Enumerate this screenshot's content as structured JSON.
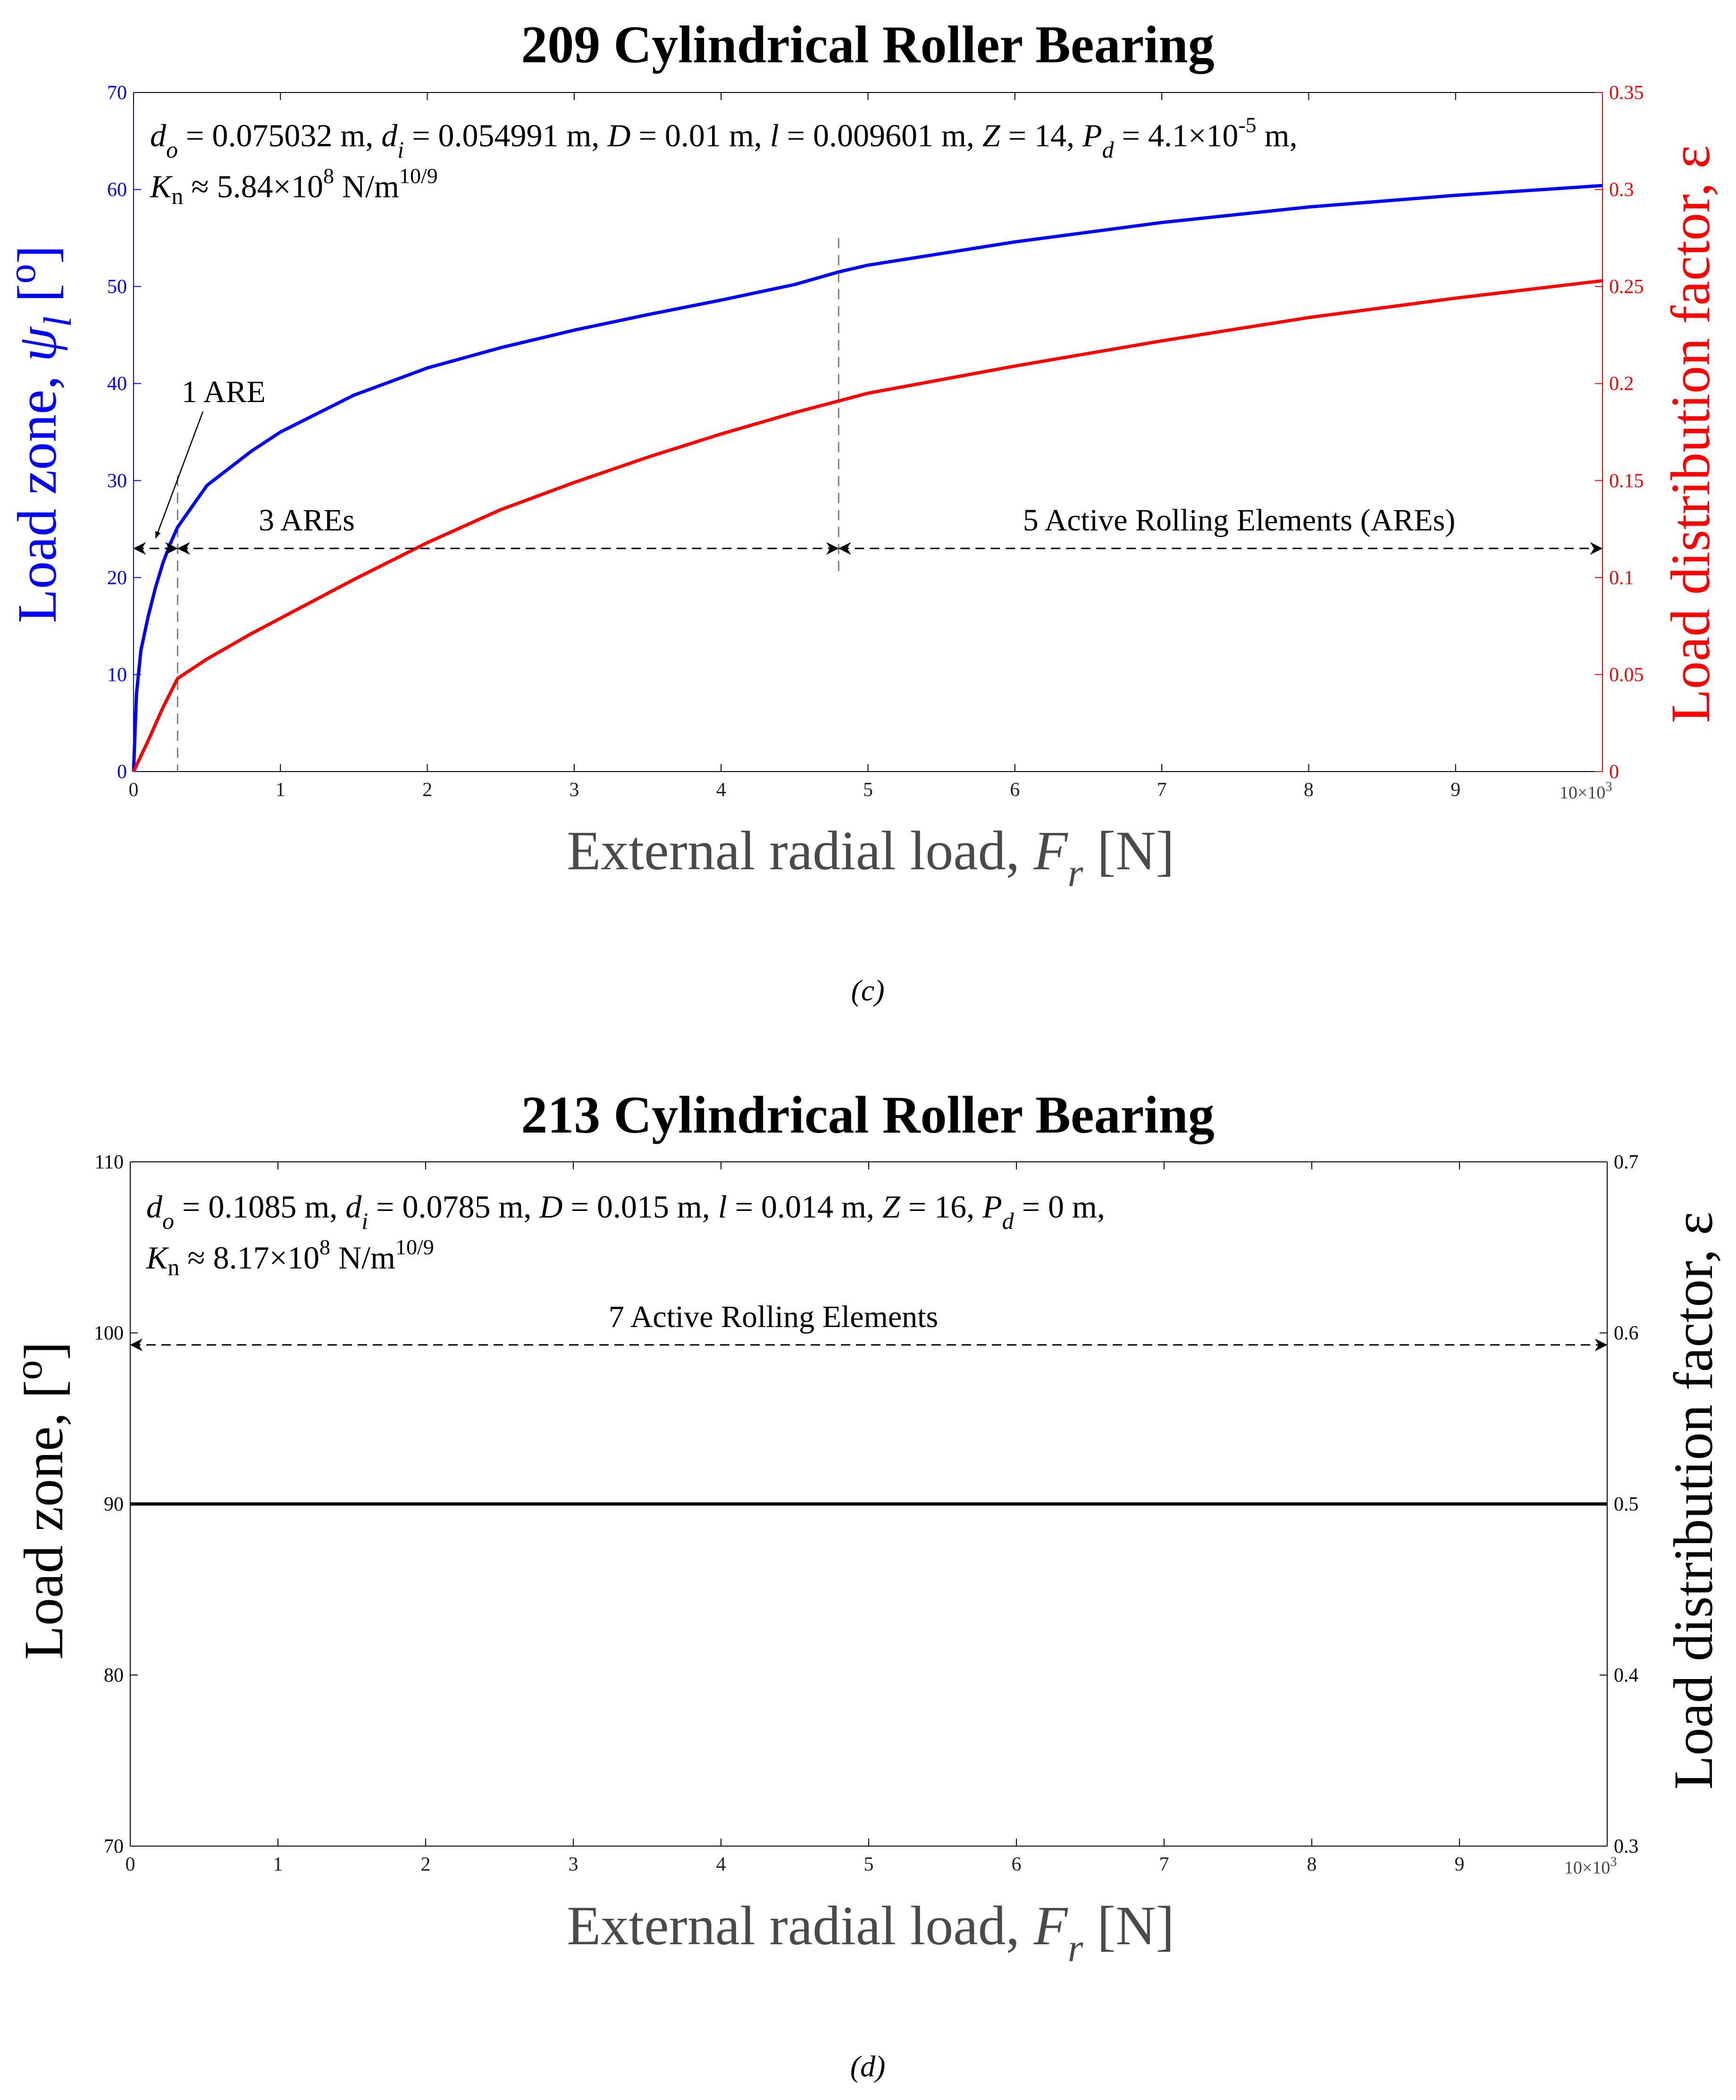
{
  "colors": {
    "blue": "#0000ff",
    "red": "#ff0000",
    "black": "#000000",
    "grey": "#4a4a4a",
    "dashed": "#808080"
  },
  "panels": [
    {
      "title": "209 Cylindrical Roller Bearing",
      "caption": "(c)",
      "xlabel": {
        "main": "External radial load, ",
        "var": "F",
        "sub": "r",
        "unit": " [N]"
      },
      "ylabel_left": {
        "main": "Load zone, ",
        "var": "ψ",
        "sub": "l",
        "unit": " [",
        "sup": "o",
        "close": "]"
      },
      "ylabel_right": "Load distribution factor, ε",
      "x_multiplier": "10×10",
      "x_multiplier_exp": "3",
      "params_line1": [
        "d",
        "o",
        " = 0.075032 m, ",
        "d",
        "i",
        " = 0.054991 m, ",
        "D",
        " = 0.01 m, ",
        "l",
        " = 0.009601 m, ",
        "Z",
        " = 14, ",
        "P",
        "d",
        " = 4.1×10",
        "-5",
        " m,"
      ],
      "params_line2": [
        "K",
        "n",
        " ≈ 5.84×10",
        "8",
        " N/m",
        "10/9"
      ],
      "annotations": {
        "one_are": "1 ARE",
        "three_ares": "3 AREs",
        "five_ares": "5 Active Rolling Elements (AREs)"
      },
      "x_ticks": [
        "0",
        "1",
        "2",
        "3",
        "4",
        "5",
        "6",
        "7",
        "8",
        "9"
      ],
      "y_left_ticks": [
        "0",
        "10",
        "20",
        "30",
        "40",
        "50",
        "60",
        "70"
      ],
      "y_right_ticks": [
        "0",
        "0.05",
        "0.1",
        "0.15",
        "0.2",
        "0.25",
        "0.3",
        "0.35"
      ]
    },
    {
      "title": "213 Cylindrical Roller Bearing",
      "caption": "(d)",
      "xlabel": {
        "main": "External radial load, ",
        "var": "F",
        "sub": "r",
        "unit": " [N]"
      },
      "ylabel_left": {
        "main": "Load zone, [",
        "sup": "o",
        "close": "]"
      },
      "ylabel_right": "Load distribution factor, ε",
      "x_multiplier": "10×10",
      "x_multiplier_exp": "3",
      "params_line1": [
        "d",
        "o",
        " = 0.1085 m, ",
        "d",
        "i",
        " = 0.0785 m, ",
        "D",
        " = 0.015 m, ",
        "l",
        " = 0.014 m, ",
        "Z",
        " = 16, ",
        "P",
        "d",
        " = 0 m,"
      ],
      "params_line2": [
        "K",
        "n",
        " ≈ 8.17×10",
        "8",
        " N/m",
        "10/9"
      ],
      "annotations": {
        "seven_ares": "7 Active Rolling Elements"
      },
      "x_ticks": [
        "0",
        "1",
        "2",
        "3",
        "4",
        "5",
        "6",
        "7",
        "8",
        "9"
      ],
      "y_left_ticks": [
        "70",
        "80",
        "90",
        "100",
        "110"
      ],
      "y_right_ticks": [
        "0.3",
        "0.4",
        "0.5",
        "0.6",
        "0.7"
      ]
    }
  ],
  "chart_data": [
    {
      "type": "line",
      "title": "209 Cylindrical Roller Bearing",
      "xlabel": "External radial load, Fr [N]",
      "ylabel": "Load zone, ψl [o]",
      "ylabel_right": "Load distribution factor, ε",
      "x_unit_multiplier": 1000,
      "xlim": [
        0,
        10000
      ],
      "ylim": [
        0,
        70
      ],
      "ylim_right": [
        0,
        0.35
      ],
      "grid": false,
      "series": [
        {
          "name": "Load zone ψl",
          "axis": "left",
          "x": [
            0,
            20,
            50,
            100,
            150,
            200,
            250,
            300,
            500,
            800,
            1000,
            1500,
            2000,
            2500,
            3000,
            3500,
            4000,
            4500,
            4800,
            5000,
            6000,
            7000,
            8000,
            9000,
            10000
          ],
          "y": [
            0,
            8,
            12.5,
            16,
            19,
            21.5,
            23.5,
            25.2,
            29.5,
            33,
            35,
            38.8,
            41.6,
            43.7,
            45.5,
            47.1,
            48.6,
            50.2,
            51.5,
            52.2,
            54.6,
            56.6,
            58.2,
            59.4,
            60.4
          ]
        },
        {
          "name": "Load distribution factor ε",
          "axis": "right",
          "x": [
            0,
            100,
            200,
            300,
            500,
            800,
            1000,
            1500,
            2000,
            2500,
            3000,
            3500,
            4000,
            4500,
            4800,
            5000,
            6000,
            7000,
            8000,
            9000,
            10000
          ],
          "y": [
            0,
            0.016,
            0.033,
            0.048,
            0.058,
            0.071,
            0.079,
            0.099,
            0.118,
            0.135,
            0.149,
            0.162,
            0.174,
            0.185,
            0.191,
            0.195,
            0.209,
            0.222,
            0.234,
            0.244,
            0.253
          ]
        }
      ],
      "regions": [
        {
          "label": "1 ARE",
          "x_range": [
            0,
            300
          ]
        },
        {
          "label": "3 AREs",
          "x_range": [
            300,
            4800
          ]
        },
        {
          "label": "5 Active Rolling Elements (AREs)",
          "x_range": [
            4800,
            10000
          ]
        }
      ],
      "boundaries_x": [
        300,
        4800
      ],
      "annotation_y": 23
    },
    {
      "type": "line",
      "title": "213 Cylindrical Roller Bearing",
      "xlabel": "External radial load, Fr [N]",
      "ylabel": "Load zone, [o]",
      "ylabel_right": "Load distribution factor, ε",
      "x_unit_multiplier": 1000,
      "xlim": [
        0,
        10000
      ],
      "ylim": [
        70,
        110
      ],
      "ylim_right": [
        0.3,
        0.7
      ],
      "grid": false,
      "series": [
        {
          "name": "Load zone / Load distribution factor",
          "axis": "left",
          "x": [
            0,
            10000
          ],
          "y": [
            90,
            90
          ]
        }
      ],
      "regions": [
        {
          "label": "7 Active Rolling Elements",
          "x_range": [
            0,
            10000
          ]
        }
      ],
      "annotation_y": 99.3
    }
  ]
}
